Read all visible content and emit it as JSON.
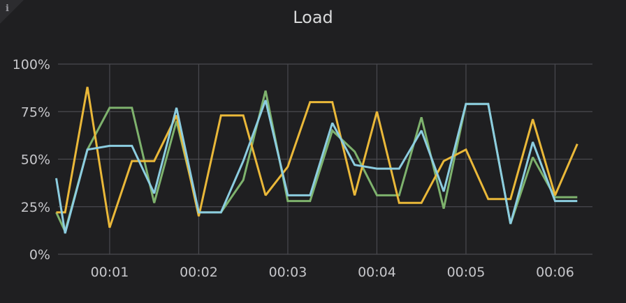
{
  "panel": {
    "title": "Load",
    "info_icon": "info-icon"
  },
  "chart_data": {
    "type": "line",
    "title": "Load",
    "xlabel": "",
    "ylabel": "",
    "ylim": [
      0,
      100
    ],
    "yticks": [
      "0%",
      "25%",
      "50%",
      "75%",
      "100%"
    ],
    "ytick_values": [
      0,
      25,
      50,
      75,
      100
    ],
    "xticks": [
      "00:01",
      "00:02",
      "00:03",
      "00:04",
      "00:05",
      "00:06"
    ],
    "xtick_values": [
      1,
      2,
      3,
      4,
      5,
      6
    ],
    "xlim": [
      0.42,
      6.42
    ],
    "grid": true,
    "x": [
      0.4,
      0.5,
      0.75,
      1.0,
      1.25,
      1.5,
      1.75,
      2.0,
      2.25,
      2.5,
      2.75,
      3.0,
      3.25,
      3.5,
      3.75,
      4.0,
      4.25,
      4.5,
      4.75,
      5.0,
      5.25,
      5.5,
      5.75,
      6.0,
      6.25
    ],
    "series": [
      {
        "color": "#7eb26d",
        "values": [
          22,
          12,
          55,
          77,
          77,
          27,
          70,
          22,
          22,
          39,
          86,
          28,
          28,
          65,
          54,
          31,
          31,
          72,
          24,
          79,
          79,
          16,
          51,
          30,
          30
        ]
      },
      {
        "color": "#eab839",
        "values": [
          22,
          22,
          88,
          14,
          49,
          49,
          73,
          20,
          73,
          73,
          31,
          46,
          80,
          80,
          31,
          75,
          27,
          27,
          49,
          55,
          29,
          29,
          71,
          31,
          58
        ]
      },
      {
        "color": "#8ccde0",
        "values": [
          40,
          11,
          55,
          57,
          57,
          32,
          77,
          22,
          22,
          49,
          81,
          31,
          31,
          69,
          47,
          45,
          45,
          65,
          33,
          79,
          79,
          16,
          59,
          28,
          28
        ]
      }
    ]
  }
}
